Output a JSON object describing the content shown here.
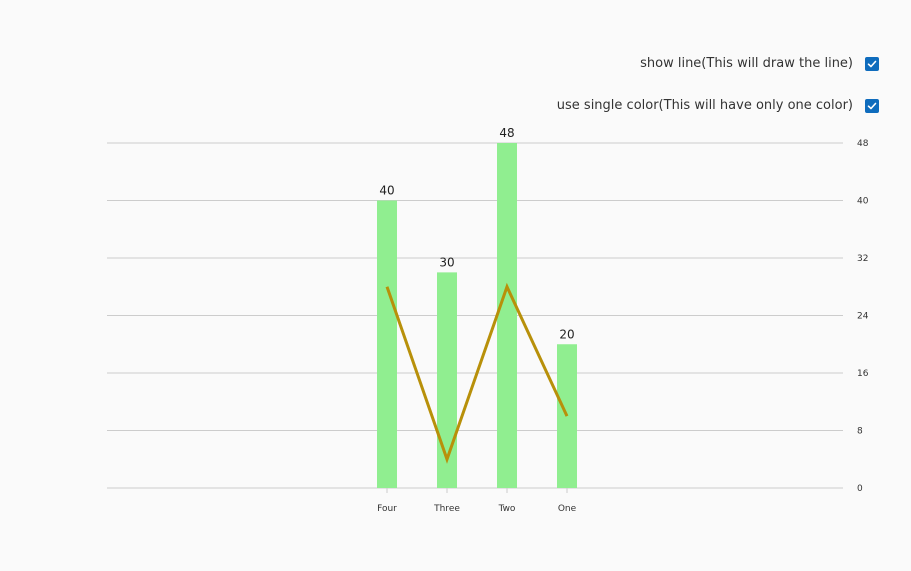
{
  "options": [
    {
      "label": "show line(This will draw the line)",
      "checked": true
    },
    {
      "label": "use single color(This will have only one color)",
      "checked": true
    }
  ],
  "colors": {
    "bar": "#90ee90",
    "line": "#b8900a",
    "grid": "#cccccc",
    "checkbox": "#0f6cbd"
  },
  "chart_data": {
    "type": "bar",
    "categories": [
      "Four",
      "Three",
      "Two",
      "One"
    ],
    "values": [
      40,
      30,
      48,
      20
    ],
    "line_values": [
      28,
      4,
      28,
      10
    ],
    "ylim": [
      0,
      48
    ],
    "yticks": [
      0,
      8,
      16,
      24,
      32,
      40,
      48
    ],
    "grid": true,
    "y_axis_position": "right",
    "show_data_labels": true
  }
}
